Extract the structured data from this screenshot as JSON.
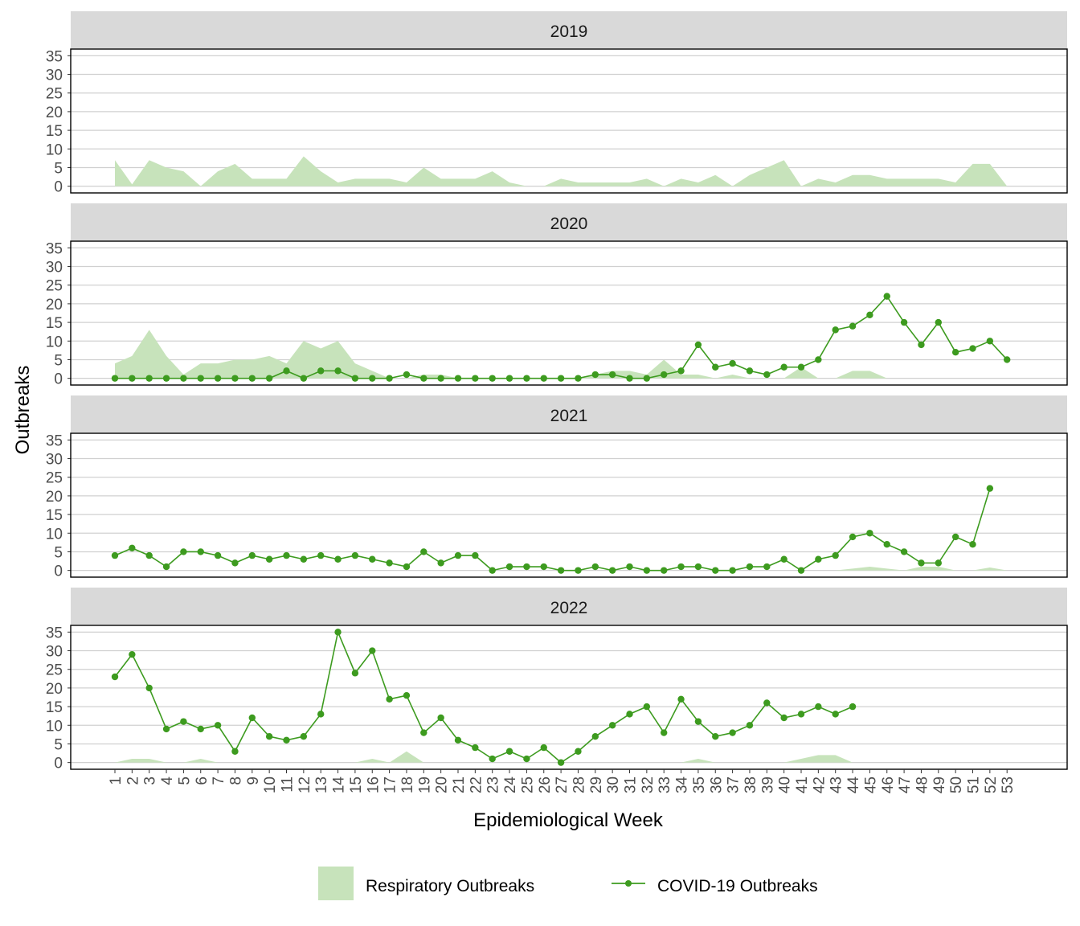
{
  "chart_data": {
    "type": "line",
    "xlabel": "Epidemiological Week",
    "ylabel": "Outbreaks",
    "ylim": [
      0,
      35
    ],
    "y_ticks": [
      0,
      5,
      10,
      15,
      20,
      25,
      30,
      35
    ],
    "x_ticks": [
      1,
      2,
      3,
      4,
      5,
      6,
      7,
      8,
      9,
      10,
      11,
      12,
      13,
      14,
      15,
      16,
      17,
      18,
      19,
      20,
      21,
      22,
      23,
      24,
      25,
      26,
      27,
      28,
      29,
      30,
      31,
      32,
      33,
      34,
      35,
      36,
      37,
      38,
      39,
      40,
      41,
      42,
      43,
      44,
      45,
      46,
      47,
      48,
      49,
      50,
      51,
      52,
      53
    ],
    "grid": true,
    "legend_position": "bottom",
    "colors": {
      "respiratory_fill": "#c7e3bb",
      "covid_line": "#3d9b1f",
      "strip": "#d9d9d9"
    },
    "series_names": {
      "respiratory": "Respiratory Outbreaks",
      "covid": "COVID-19 Outbreaks"
    },
    "panels": [
      {
        "year": "2019",
        "respiratory": [
          7,
          0.5,
          7,
          5,
          4,
          0,
          4,
          6,
          2,
          2,
          2,
          8,
          4,
          1,
          2,
          2,
          2,
          1,
          5,
          2,
          2,
          2,
          4,
          1,
          0,
          0,
          2,
          1,
          1,
          1,
          1,
          2,
          0,
          2,
          1,
          3,
          0,
          3,
          5,
          7,
          0,
          2,
          1,
          3,
          3,
          2,
          2,
          2,
          2,
          1,
          6,
          6,
          0
        ],
        "covid": []
      },
      {
        "year": "2020",
        "respiratory": [
          4,
          6,
          13,
          6,
          1,
          4,
          4,
          5,
          5,
          6,
          4,
          10,
          8,
          10,
          4,
          2,
          0,
          0,
          1,
          1,
          0,
          0,
          0,
          0,
          0,
          0,
          0,
          0,
          1,
          2,
          2,
          1,
          5,
          1,
          1,
          0,
          1,
          0,
          0,
          0,
          3,
          0,
          0,
          2,
          2,
          0,
          0,
          0,
          0,
          0,
          0,
          0,
          0
        ],
        "covid": [
          0,
          0,
          0,
          0,
          0,
          0,
          0,
          0,
          0,
          0,
          2,
          0,
          2,
          2,
          0,
          0,
          0,
          1,
          0,
          0,
          0,
          0,
          0,
          0,
          0,
          0,
          0,
          0,
          1,
          1,
          0,
          0,
          1,
          2,
          9,
          3,
          4,
          2,
          1,
          3,
          3,
          5,
          13,
          14,
          17,
          22,
          15,
          9,
          15,
          7,
          8,
          10,
          5
        ]
      },
      {
        "year": "2021",
        "respiratory": [
          0,
          0,
          0,
          0,
          0,
          0,
          0,
          0,
          0,
          0,
          0,
          0,
          0,
          0,
          0,
          0,
          0,
          0,
          0,
          0,
          0,
          0,
          0,
          0,
          0,
          0,
          0,
          0,
          0,
          0,
          0,
          0,
          0,
          0,
          0,
          0,
          0,
          0,
          0,
          0,
          0,
          0,
          0,
          0.5,
          1,
          0.5,
          0,
          1,
          1,
          0,
          0,
          0.8,
          0
        ],
        "covid": [
          4,
          6,
          4,
          1,
          5,
          5,
          4,
          2,
          4,
          3,
          4,
          3,
          4,
          3,
          4,
          3,
          2,
          1,
          5,
          2,
          4,
          4,
          0,
          1,
          1,
          1,
          0,
          0,
          1,
          0,
          1,
          0,
          0,
          1,
          1,
          0,
          0,
          1,
          1,
          3,
          0,
          3,
          4,
          9,
          10,
          7,
          5,
          2,
          2,
          9,
          7,
          22
        ]
      },
      {
        "year": "2022",
        "respiratory": [
          0,
          1,
          1,
          0,
          0,
          1,
          0,
          0,
          0,
          0,
          0,
          0,
          0,
          0,
          0,
          1,
          0,
          3,
          0,
          0,
          0,
          0,
          0,
          0,
          0,
          0,
          0,
          0,
          0,
          0,
          0,
          0,
          0,
          0,
          1,
          0,
          0,
          0,
          0,
          0,
          1,
          2,
          2,
          0,
          0,
          0,
          0,
          0,
          0,
          0,
          0,
          0,
          0
        ],
        "covid": [
          23,
          29,
          20,
          9,
          11,
          9,
          10,
          3,
          12,
          7,
          6,
          7,
          13,
          35,
          24,
          30,
          17,
          18,
          8,
          12,
          6,
          4,
          1,
          3,
          1,
          4,
          0,
          3,
          7,
          10,
          13,
          15,
          8,
          17,
          11,
          7,
          8,
          10,
          16,
          12,
          13,
          15,
          13,
          15
        ]
      }
    ]
  }
}
